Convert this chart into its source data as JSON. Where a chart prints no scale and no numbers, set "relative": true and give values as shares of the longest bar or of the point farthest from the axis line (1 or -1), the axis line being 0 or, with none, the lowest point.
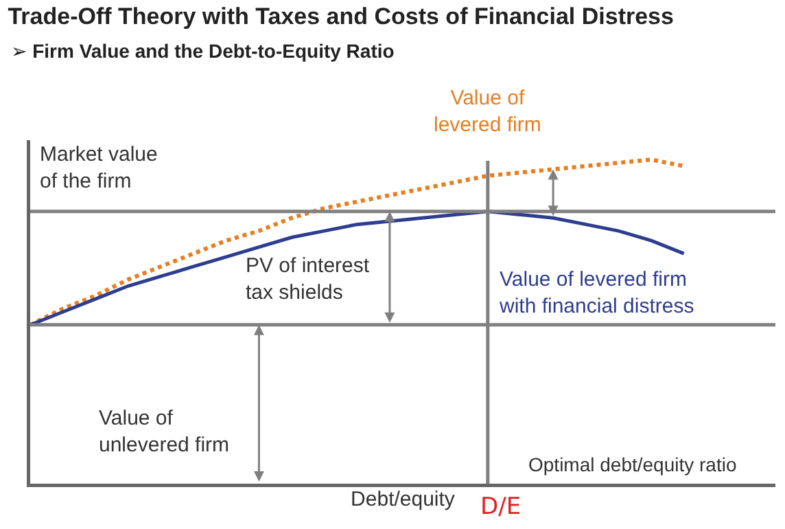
{
  "chart_data": {
    "type": "line",
    "title": "Trade-Off Theory with Taxes and Costs of Financial Distress",
    "subtitle": "➢ Firm Value and the Debt-to-Equity Ratio",
    "xlabel": "Debt/equity",
    "ylabel": "Market value of the firm",
    "relative": true,
    "categories": [
      null,
      null,
      null,
      null,
      null,
      null,
      null,
      null,
      null,
      null,
      null,
      null,
      null,
      null,
      null,
      null,
      null,
      null,
      null,
      null,
      null,
      null,
      null
    ],
    "legend": false,
    "marker": "none",
    "series": [
      {
        "name": "Value of levered firm",
        "color": "#e67e22",
        "line_style": "dotted",
        "values": [
          0.49,
          0.54,
          0.58,
          0.63,
          0.67,
          0.71,
          0.75,
          0.78,
          0.82,
          0.85,
          0.87,
          0.89,
          0.91,
          0.93,
          0.95,
          0.96,
          0.97,
          0.98,
          0.99,
          1.0,
          0.98,
          null,
          null
        ]
      },
      {
        "name": "Value of levered firm with financial distress",
        "color": "#2e3d8f",
        "line_style": "solid",
        "values": [
          0.49,
          0.53,
          0.57,
          0.61,
          0.64,
          0.67,
          0.7,
          0.73,
          0.76,
          0.78,
          0.8,
          0.81,
          0.82,
          0.83,
          0.84,
          0.83,
          0.82,
          0.8,
          0.78,
          0.75,
          0.71,
          null,
          null
        ]
      }
    ],
    "annotations": [
      "PV of interest tax shields",
      "Value of unlevered firm",
      "Optimal debt/equity ratio",
      "D/E"
    ]
  }
}
